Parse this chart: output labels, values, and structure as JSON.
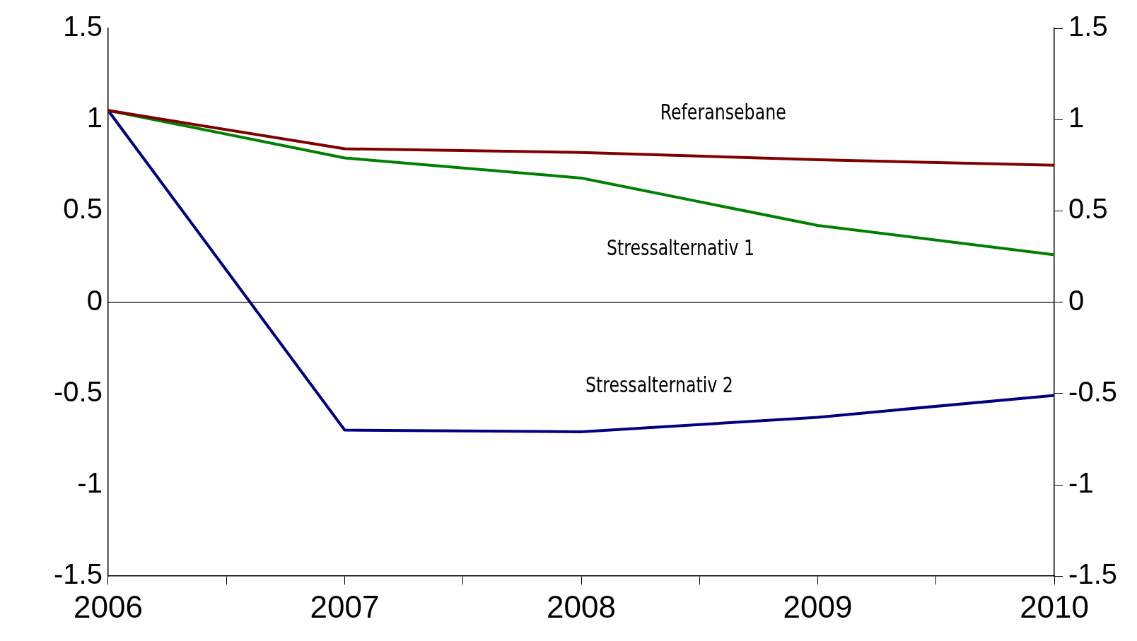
{
  "chart_data": {
    "type": "line",
    "x": [
      2006,
      2007,
      2008,
      2009,
      2010
    ],
    "series": [
      {
        "name": "Referansebane",
        "color": "#800000",
        "values": [
          1.05,
          0.84,
          0.82,
          0.78,
          0.75
        ]
      },
      {
        "name": "Stressalternativ 1",
        "color": "#008000",
        "values": [
          1.05,
          0.79,
          0.68,
          0.42,
          0.26
        ]
      },
      {
        "name": "Stressalternativ 2",
        "color": "#000080",
        "values": [
          1.05,
          -0.7,
          -0.71,
          -0.63,
          -0.51
        ]
      }
    ],
    "xlim": [
      2006,
      2010
    ],
    "xticks": [
      2006,
      {
        "value": 2006.5,
        "label": null
      },
      2007,
      {
        "value": 2007.5,
        "label": null
      },
      2008,
      {
        "value": 2008.5,
        "label": null
      },
      2009,
      {
        "value": 2009.5,
        "label": null
      },
      2010
    ],
    "ylim": [
      -1.5,
      1.5
    ],
    "yticks": [
      -1.5,
      -1,
      -0.5,
      0,
      0.5,
      1,
      1.5
    ],
    "y2lim": [
      -1.5,
      1.5
    ],
    "y2ticks": [
      -1.5,
      -1,
      -0.5,
      0,
      0.5,
      1,
      1.5
    ],
    "ref_lines": [
      {
        "axis": "y",
        "value": 0,
        "color": "#000000"
      }
    ],
    "grid": false,
    "legend": false,
    "marker": "none",
    "line_style": "solid"
  }
}
